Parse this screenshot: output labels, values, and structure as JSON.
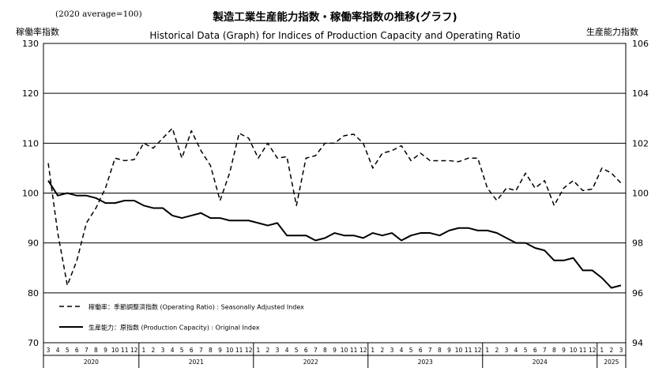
{
  "chart_data": {
    "type": "line",
    "title": "製造工業生産能力指数・稼働率指数の推移(グラフ)",
    "subtitle": "Historical Data (Graph) for Indices of Production Capacity and Operating Ratio",
    "base_note": "(2020 average=100)",
    "y_left_label": "稼働率指数",
    "y_right_label": "生産能力指数",
    "y_left_lim": [
      70,
      130
    ],
    "y_left_ticks": [
      "70",
      "80",
      "90",
      "100",
      "110",
      "120",
      "130"
    ],
    "y_right_lim": [
      94,
      106
    ],
    "y_right_ticks": [
      "94",
      "96",
      "98",
      "100",
      "102",
      "104",
      "106"
    ],
    "grid": "horizontal",
    "legend_position": "bottom-left",
    "x": {
      "years": [
        {
          "year": "2020",
          "months": [
            "3",
            "4",
            "5",
            "6",
            "7",
            "8",
            "9",
            "10",
            "11",
            "12"
          ]
        },
        {
          "year": "2021",
          "months": [
            "1",
            "2",
            "3",
            "4",
            "5",
            "6",
            "7",
            "8",
            "9",
            "10",
            "11",
            "12"
          ]
        },
        {
          "year": "2022",
          "months": [
            "1",
            "2",
            "3",
            "4",
            "5",
            "6",
            "7",
            "8",
            "9",
            "10",
            "11",
            "12"
          ]
        },
        {
          "year": "2023",
          "months": [
            "1",
            "2",
            "3",
            "4",
            "5",
            "6",
            "7",
            "8",
            "9",
            "10",
            "11",
            "12"
          ]
        },
        {
          "year": "2024",
          "months": [
            "1",
            "2",
            "3",
            "4",
            "5",
            "6",
            "7",
            "8",
            "9",
            "10",
            "11",
            "12"
          ]
        },
        {
          "year": "2025",
          "months": [
            "1",
            "2",
            "3"
          ]
        }
      ]
    },
    "series": [
      {
        "name": "稼働率：季節調整済指数 (Operating Ratio) : Seasonally Adjusted Index",
        "axis": "left",
        "style": "dashed",
        "values": [
          106,
          92,
          81.5,
          86.5,
          94,
          97,
          101,
          107,
          106.5,
          106.7,
          110,
          109,
          111,
          113,
          107,
          112.5,
          108.5,
          105.5,
          98.5,
          104,
          112,
          111,
          107,
          110,
          107,
          107.3,
          97.5,
          107,
          107.5,
          110,
          110,
          111.5,
          111.8,
          110,
          105,
          108,
          108.5,
          109.5,
          106.5,
          108,
          106.5,
          106.5,
          106.5,
          106.3,
          107,
          107,
          101,
          98.5,
          101,
          100.5,
          104,
          101,
          102.5,
          97.5,
          101,
          102.5,
          100.5,
          100.8,
          105,
          104,
          102
        ]
      },
      {
        "name": "生産能力：原指数 (Production Capacity) : Original Index",
        "axis": "right",
        "style": "solid",
        "values": [
          100.5,
          99.9,
          100,
          99.9,
          99.9,
          99.8,
          99.6,
          99.6,
          99.7,
          99.7,
          99.5,
          99.4,
          99.4,
          99.1,
          99,
          99.1,
          99.2,
          99,
          99,
          98.9,
          98.9,
          98.9,
          98.8,
          98.7,
          98.8,
          98.3,
          98.3,
          98.3,
          98.1,
          98.2,
          98.4,
          98.3,
          98.3,
          98.2,
          98.4,
          98.3,
          98.4,
          98.1,
          98.3,
          98.4,
          98.4,
          98.3,
          98.5,
          98.6,
          98.6,
          98.5,
          98.5,
          98.4,
          98.2,
          98,
          98,
          97.8,
          97.7,
          97.3,
          97.3,
          97.4,
          96.9,
          96.9,
          96.6,
          96.2,
          96.3
        ]
      }
    ]
  }
}
